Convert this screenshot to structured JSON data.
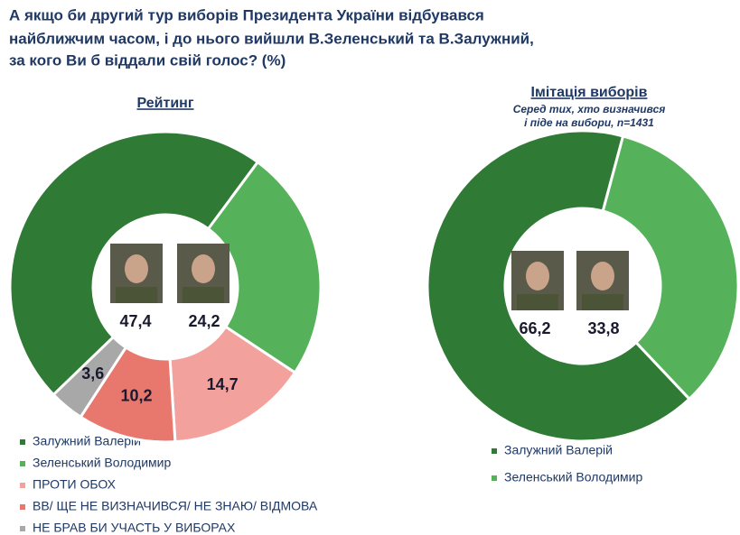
{
  "header": {
    "title": [
      "А якщо би другий тур виборів Президента України відбувався",
      "найближчим часом, і до нього вийшли В.Зеленський та В.Залужний,",
      "за кого Ви б віддали свій голос? (%)"
    ]
  },
  "chart_data": [
    {
      "type": "pie",
      "title": "Рейтинг",
      "categories": [
        "Залужний Валерій",
        "Зеленський Володимир",
        "ПРОТИ ОБОХ",
        "ВВ/ ЩЕ НЕ ВИЗНАЧИВСЯ/ НЕ ЗНАЮ/ ВІДМОВА",
        "НЕ БРАВ БИ УЧАСТЬ У ВИБОРАХ"
      ],
      "values": [
        47.4,
        24.2,
        14.7,
        10.2,
        3.6
      ],
      "value_labels": [
        "47,4",
        "24,2",
        "14,7",
        "10,2",
        "3,6"
      ],
      "colors": [
        "#2f7a34",
        "#55b25a",
        "#f3a19c",
        "#e8776e",
        "#a8a8a8"
      ]
    },
    {
      "type": "pie",
      "title": "Імітація виборів",
      "subtitle": [
        "Серед тих, хто визначився",
        "і піде на вибори, n=1431"
      ],
      "categories": [
        "Залужний Валерій",
        "Зеленський Володимир"
      ],
      "values": [
        66.2,
        33.8
      ],
      "value_labels": [
        "66,2",
        "33,8"
      ],
      "colors": [
        "#2f7a34",
        "#55b25a"
      ]
    }
  ]
}
